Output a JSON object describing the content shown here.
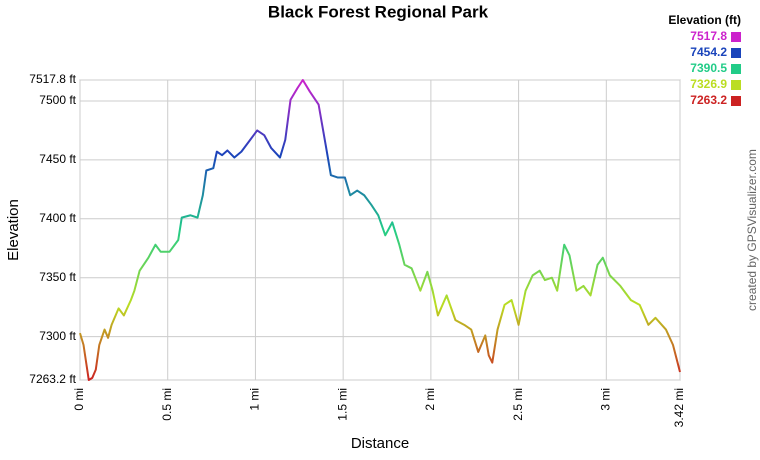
{
  "chart_data": {
    "type": "line",
    "title": "Black Forest Regional Park",
    "x_label": "Distance",
    "y_label": "Elevation",
    "watermark": "created by GPSVisualizer.com",
    "xlim": [
      0,
      3.42
    ],
    "ylim": [
      7263.2,
      7517.8
    ],
    "xticks": [
      {
        "value": 0,
        "label": "0 mi"
      },
      {
        "value": 0.5,
        "label": "0.5 mi"
      },
      {
        "value": 1,
        "label": "1 mi"
      },
      {
        "value": 1.5,
        "label": "1.5 mi"
      },
      {
        "value": 2,
        "label": "2 mi"
      },
      {
        "value": 2.5,
        "label": "2.5 mi"
      },
      {
        "value": 3,
        "label": "3 mi"
      },
      {
        "value": 3.42,
        "label": "3.42 mi"
      }
    ],
    "yticks": [
      {
        "value": 7263.2,
        "label": "7263.2 ft"
      },
      {
        "value": 7300,
        "label": "7300 ft"
      },
      {
        "value": 7350,
        "label": "7350 ft"
      },
      {
        "value": 7400,
        "label": "7400 ft"
      },
      {
        "value": 7450,
        "label": "7450 ft"
      },
      {
        "value": 7500,
        "label": "7500 ft"
      },
      {
        "value": 7517.8,
        "label": "7517.8 ft"
      }
    ],
    "grid": true,
    "legend": {
      "title": "Elevation (ft)",
      "values": [
        7517.8,
        7454.2,
        7390.5,
        7326.9,
        7263.2
      ],
      "colors": [
        "#cc22cc",
        "#1a44bb",
        "#22cc88",
        "#bbdd22",
        "#cc2222"
      ]
    },
    "x": [
      0,
      0.02,
      0.05,
      0.07,
      0.09,
      0.11,
      0.14,
      0.16,
      0.18,
      0.22,
      0.25,
      0.29,
      0.31,
      0.34,
      0.39,
      0.43,
      0.46,
      0.51,
      0.56,
      0.58,
      0.63,
      0.67,
      0.7,
      0.72,
      0.76,
      0.78,
      0.81,
      0.84,
      0.88,
      0.92,
      0.97,
      1.01,
      1.05,
      1.09,
      1.14,
      1.17,
      1.2,
      1.24,
      1.27,
      1.31,
      1.36,
      1.4,
      1.43,
      1.47,
      1.51,
      1.54,
      1.58,
      1.62,
      1.66,
      1.7,
      1.74,
      1.78,
      1.82,
      1.85,
      1.89,
      1.94,
      1.98,
      2.01,
      2.04,
      2.09,
      2.14,
      2.19,
      2.23,
      2.27,
      2.31,
      2.33,
      2.35,
      2.38,
      2.42,
      2.46,
      2.5,
      2.54,
      2.58,
      2.62,
      2.65,
      2.69,
      2.72,
      2.76,
      2.79,
      2.83,
      2.87,
      2.91,
      2.95,
      2.98,
      3.02,
      3.08,
      3.14,
      3.19,
      3.24,
      3.28,
      3.34,
      3.38,
      3.42
    ],
    "values": [
      7303,
      7293,
      7263.2,
      7265,
      7272,
      7293,
      7306,
      7299,
      7310,
      7324,
      7318,
      7331,
      7339,
      7356,
      7367,
      7378,
      7372,
      7372,
      7382,
      7401,
      7403,
      7401,
      7420,
      7441,
      7443,
      7457,
      7454,
      7458,
      7452,
      7457,
      7467,
      7475,
      7471,
      7460,
      7452,
      7467,
      7501,
      7511,
      7517.8,
      7508,
      7497,
      7463,
      7437,
      7435,
      7435,
      7420,
      7424,
      7420,
      7412,
      7403,
      7386,
      7397,
      7378,
      7361,
      7358,
      7339,
      7355,
      7339,
      7318,
      7335,
      7314,
      7310,
      7306,
      7287,
      7301,
      7284,
      7278,
      7306,
      7327,
      7331,
      7310,
      7339,
      7352,
      7356,
      7348,
      7350,
      7339,
      7378,
      7369,
      7339,
      7343,
      7335,
      7361,
      7367,
      7352,
      7343,
      7331,
      7327,
      7310,
      7316,
      7306,
      7293,
      7270
    ]
  }
}
